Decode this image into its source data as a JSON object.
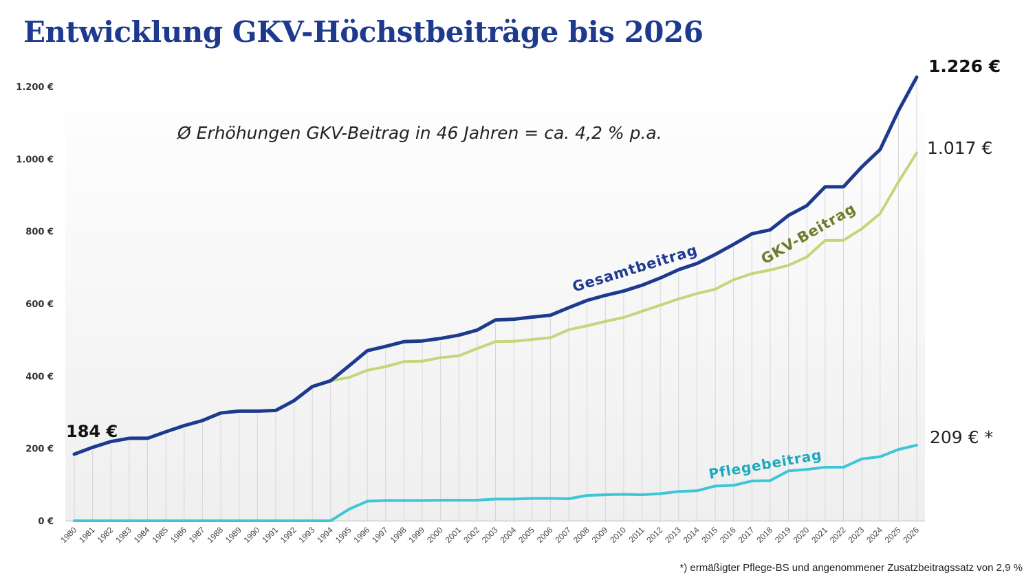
{
  "title": "Entwicklung GKV-Höchstbeiträge bis 2026",
  "footnote": "*) ermäßigter Pflege-BS und angenommener Zusatzbeitragssatz von 2,9 %",
  "chart_data": {
    "type": "line",
    "title": "Entwicklung GKV-Höchstbeiträge bis 2026",
    "annotation": "Ø Erhöhungen GKV-Beitrag in 46 Jahren = ca. 4,2 % p.a.",
    "x": [
      1980,
      1981,
      1982,
      1983,
      1984,
      1985,
      1986,
      1987,
      1988,
      1989,
      1990,
      1991,
      1992,
      1993,
      1994,
      1995,
      1996,
      1997,
      1998,
      1999,
      2000,
      2001,
      2002,
      2003,
      2004,
      2005,
      2006,
      2007,
      2008,
      2009,
      2010,
      2011,
      2012,
      2013,
      2014,
      2015,
      2016,
      2017,
      2018,
      2019,
      2020,
      2021,
      2022,
      2023,
      2024,
      2025,
      2026
    ],
    "ylim": [
      0,
      1200
    ],
    "yticks": [
      0,
      200,
      400,
      600,
      800,
      1000,
      1200
    ],
    "ytick_labels": [
      "0 €",
      "200 €",
      "400 €",
      "600 €",
      "800 €",
      "1.000 €",
      "1.200 €"
    ],
    "grid": "vertical",
    "series": [
      {
        "name": "Gesamtbeitrag",
        "color": "#1d3a8f",
        "values": [
          184,
          203,
          219,
          228,
          228,
          246,
          263,
          277,
          298,
          303,
          303,
          305,
          332,
          371,
          387,
          428,
          470,
          482,
          495,
          497,
          504,
          513,
          527,
          555,
          557,
          563,
          568,
          589,
          609,
          623,
          635,
          651,
          671,
          694,
          711,
          736,
          764,
          793,
          804,
          844,
          871,
          923,
          923,
          978,
          1026,
          1133,
          1226
        ]
      },
      {
        "name": "GKV-Beitrag",
        "color": "#c3d67a",
        "label_color": "#6b7d2a",
        "values": [
          184,
          203,
          219,
          228,
          228,
          246,
          263,
          277,
          298,
          303,
          303,
          305,
          332,
          371,
          387,
          396,
          416,
          426,
          440,
          441,
          451,
          456,
          476,
          495,
          496,
          501,
          506,
          528,
          539,
          551,
          562,
          579,
          596,
          613,
          628,
          640,
          666,
          683,
          693,
          706,
          729,
          775,
          775,
          807,
          849,
          936,
          1017
        ]
      },
      {
        "name": "Pflegebeitrag",
        "color": "#3ec6d8",
        "label_color": "#1ba9bd",
        "values": [
          0,
          0,
          0,
          0,
          0,
          0,
          0,
          0,
          0,
          0,
          0,
          0,
          0,
          0,
          0,
          32,
          54,
          56,
          56,
          56,
          57,
          57,
          57,
          60,
          60,
          62,
          62,
          61,
          70,
          72,
          73,
          72,
          75,
          81,
          83,
          96,
          98,
          110,
          111,
          138,
          142,
          148,
          148,
          171,
          177,
          197,
          209
        ]
      }
    ],
    "data_labels": [
      {
        "text": "184 €",
        "series": "Gesamtbeitrag",
        "x": 1980
      },
      {
        "text": "1.226 €",
        "series": "Gesamtbeitrag",
        "x": 2026
      },
      {
        "text": "1.017 €",
        "series": "GKV-Beitrag",
        "x": 2026
      },
      {
        "text": "209 € *",
        "series": "Pflegebeitrag",
        "x": 2026
      }
    ]
  }
}
